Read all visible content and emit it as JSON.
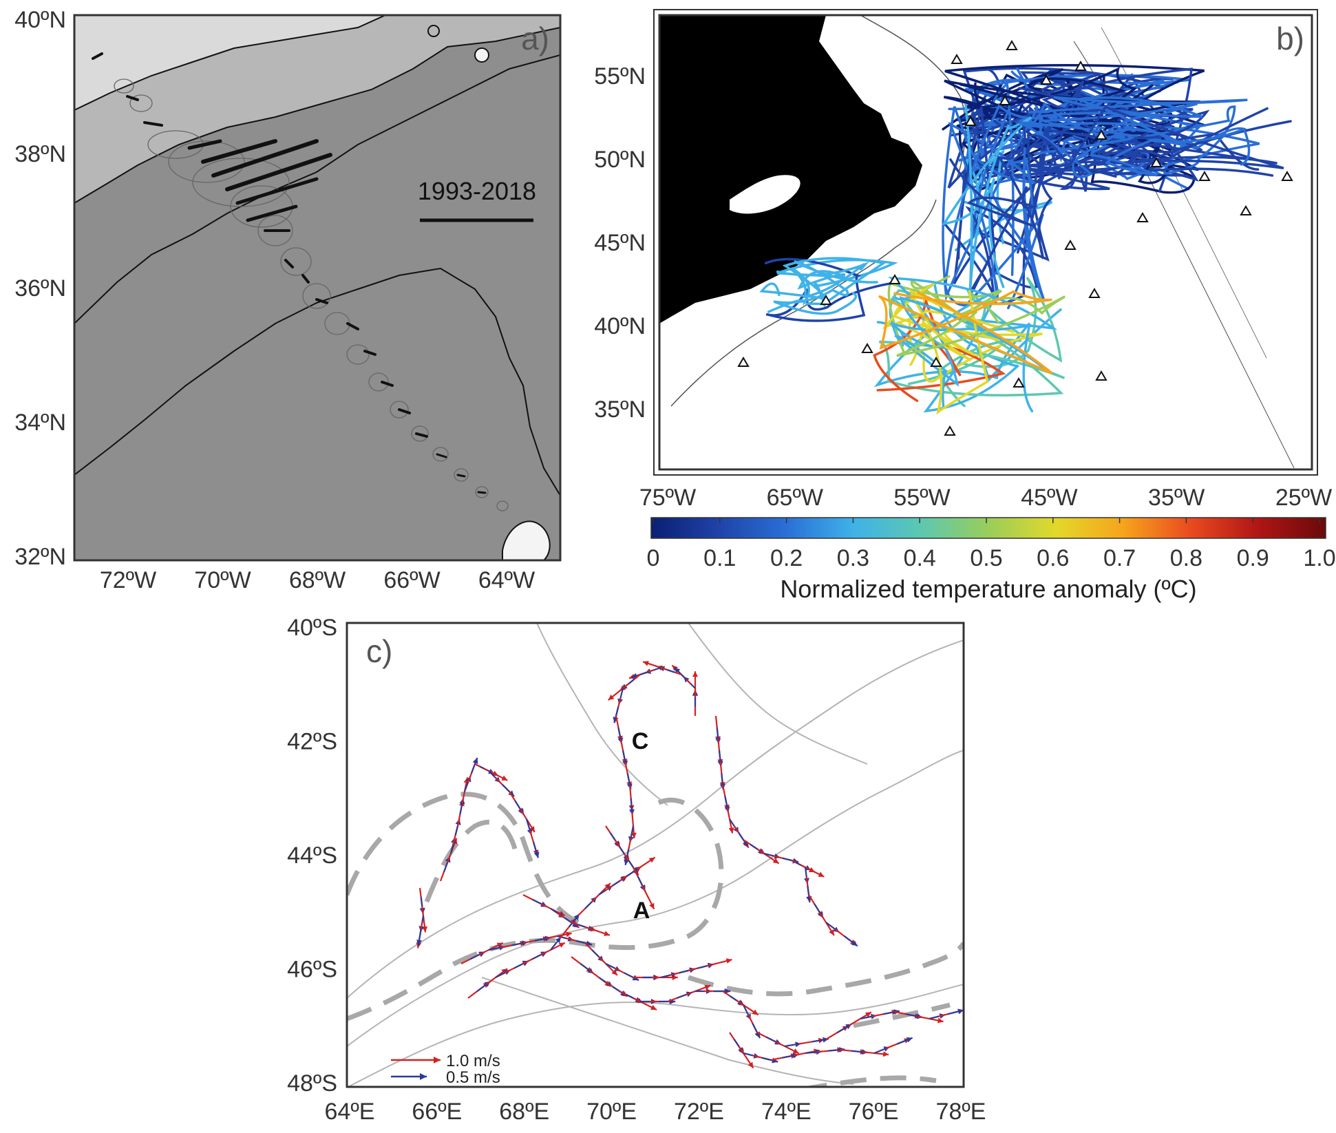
{
  "panels": {
    "a": {
      "label": "a)",
      "period_note": "1993-2018",
      "y_ticks": [
        "40ºN",
        "38ºN",
        "36ºN",
        "34ºN",
        "32ºN"
      ],
      "x_ticks": [
        "72ºW",
        "70ºW",
        "68ºW",
        "66ºW",
        "64ºW"
      ]
    },
    "b": {
      "label": "b)",
      "y_ticks": [
        "55ºN",
        "50ºN",
        "45ºN",
        "40ºN",
        "35ºN"
      ],
      "x_ticks": [
        "75ºW",
        "65ºW",
        "55ºW",
        "45ºW",
        "35ºW",
        "25ºW"
      ],
      "colorbar": {
        "title": "Normalized temperature anomaly (ºC)",
        "ticks": [
          "0",
          "0.1",
          "0.2",
          "0.3",
          "0.4",
          "0.5",
          "0.6",
          "0.7",
          "0.8",
          "0.9",
          "1.0"
        ],
        "range": [
          0,
          1.0
        ],
        "colormap": "jet",
        "colors": [
          "#0a1f73",
          "#1f43a8",
          "#2a6fd6",
          "#3fb2e8",
          "#5cc8b0",
          "#9acd5a",
          "#e2d82a",
          "#f6a41c",
          "#e94a1f",
          "#b01515",
          "#6a0a0a"
        ]
      }
    },
    "c": {
      "label": "c)",
      "y_ticks": [
        "40ºS",
        "42ºS",
        "44ºS",
        "46ºS",
        "48ºS"
      ],
      "x_ticks": [
        "64ºE",
        "66ºE",
        "68ºE",
        "70ºE",
        "72ºE",
        "74ºE",
        "76ºE",
        "78ºE"
      ],
      "markers": [
        "A",
        "C"
      ],
      "legend": [
        {
          "label": "1.0 m/s",
          "color": "#d62020"
        },
        {
          "label": "0.5 m/s",
          "color": "#2b3a9c"
        }
      ]
    }
  }
}
